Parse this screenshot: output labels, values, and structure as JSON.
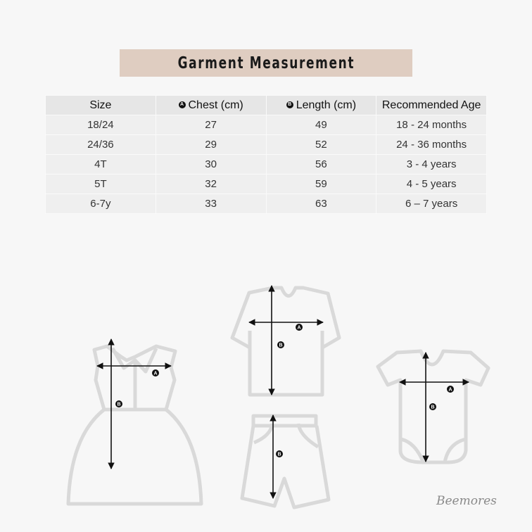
{
  "title": "Garment Measurement",
  "table": {
    "headers": [
      {
        "marker": "",
        "label": "Size"
      },
      {
        "marker": "A",
        "label": "Chest (cm)"
      },
      {
        "marker": "B",
        "label": "Length (cm)"
      },
      {
        "marker": "",
        "label": "Recommended Age"
      }
    ],
    "rows": [
      [
        "18/24",
        "27",
        "49",
        "18 - 24 months"
      ],
      [
        "24/36",
        "29",
        "52",
        "24 - 36 months"
      ],
      [
        "4T",
        "30",
        "56",
        "3 - 4 years"
      ],
      [
        "5T",
        "32",
        "59",
        "4 - 5 years"
      ],
      [
        "6-7y",
        "33",
        "63",
        "6 – 7 years"
      ]
    ]
  },
  "markers": {
    "a": "A",
    "b": "B"
  },
  "signature": "Beemores",
  "colors": {
    "title_bg": "#dfcdc1",
    "outline": "#d9d9d9",
    "arrow": "#111111"
  }
}
